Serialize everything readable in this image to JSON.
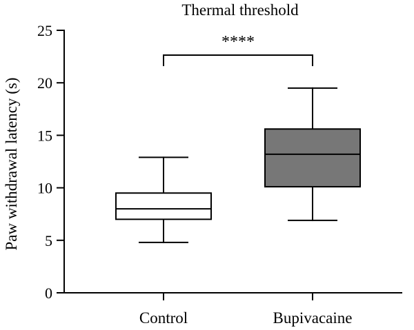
{
  "chart_data": {
    "type": "box",
    "title": "Thermal threshold",
    "xlabel": "",
    "ylabel": "Paw withdrawal latency (s)",
    "ylim": [
      0,
      25
    ],
    "yticks": [
      0,
      5,
      10,
      15,
      20,
      25
    ],
    "grid": false,
    "categories": [
      "Control",
      "Bupivacaine"
    ],
    "boxes": [
      {
        "name": "Control",
        "min": 4.8,
        "q1": 7.0,
        "median": 8.0,
        "q3": 9.5,
        "max": 12.9,
        "fill": "#ffffff"
      },
      {
        "name": "Bupivacaine",
        "min": 6.9,
        "q1": 10.1,
        "median": 13.2,
        "q3": 15.6,
        "max": 19.5,
        "fill": "#777777"
      }
    ],
    "annotations": [
      {
        "type": "significance-bracket",
        "from": "Control",
        "to": "Bupivacaine",
        "label": "****"
      }
    ]
  }
}
